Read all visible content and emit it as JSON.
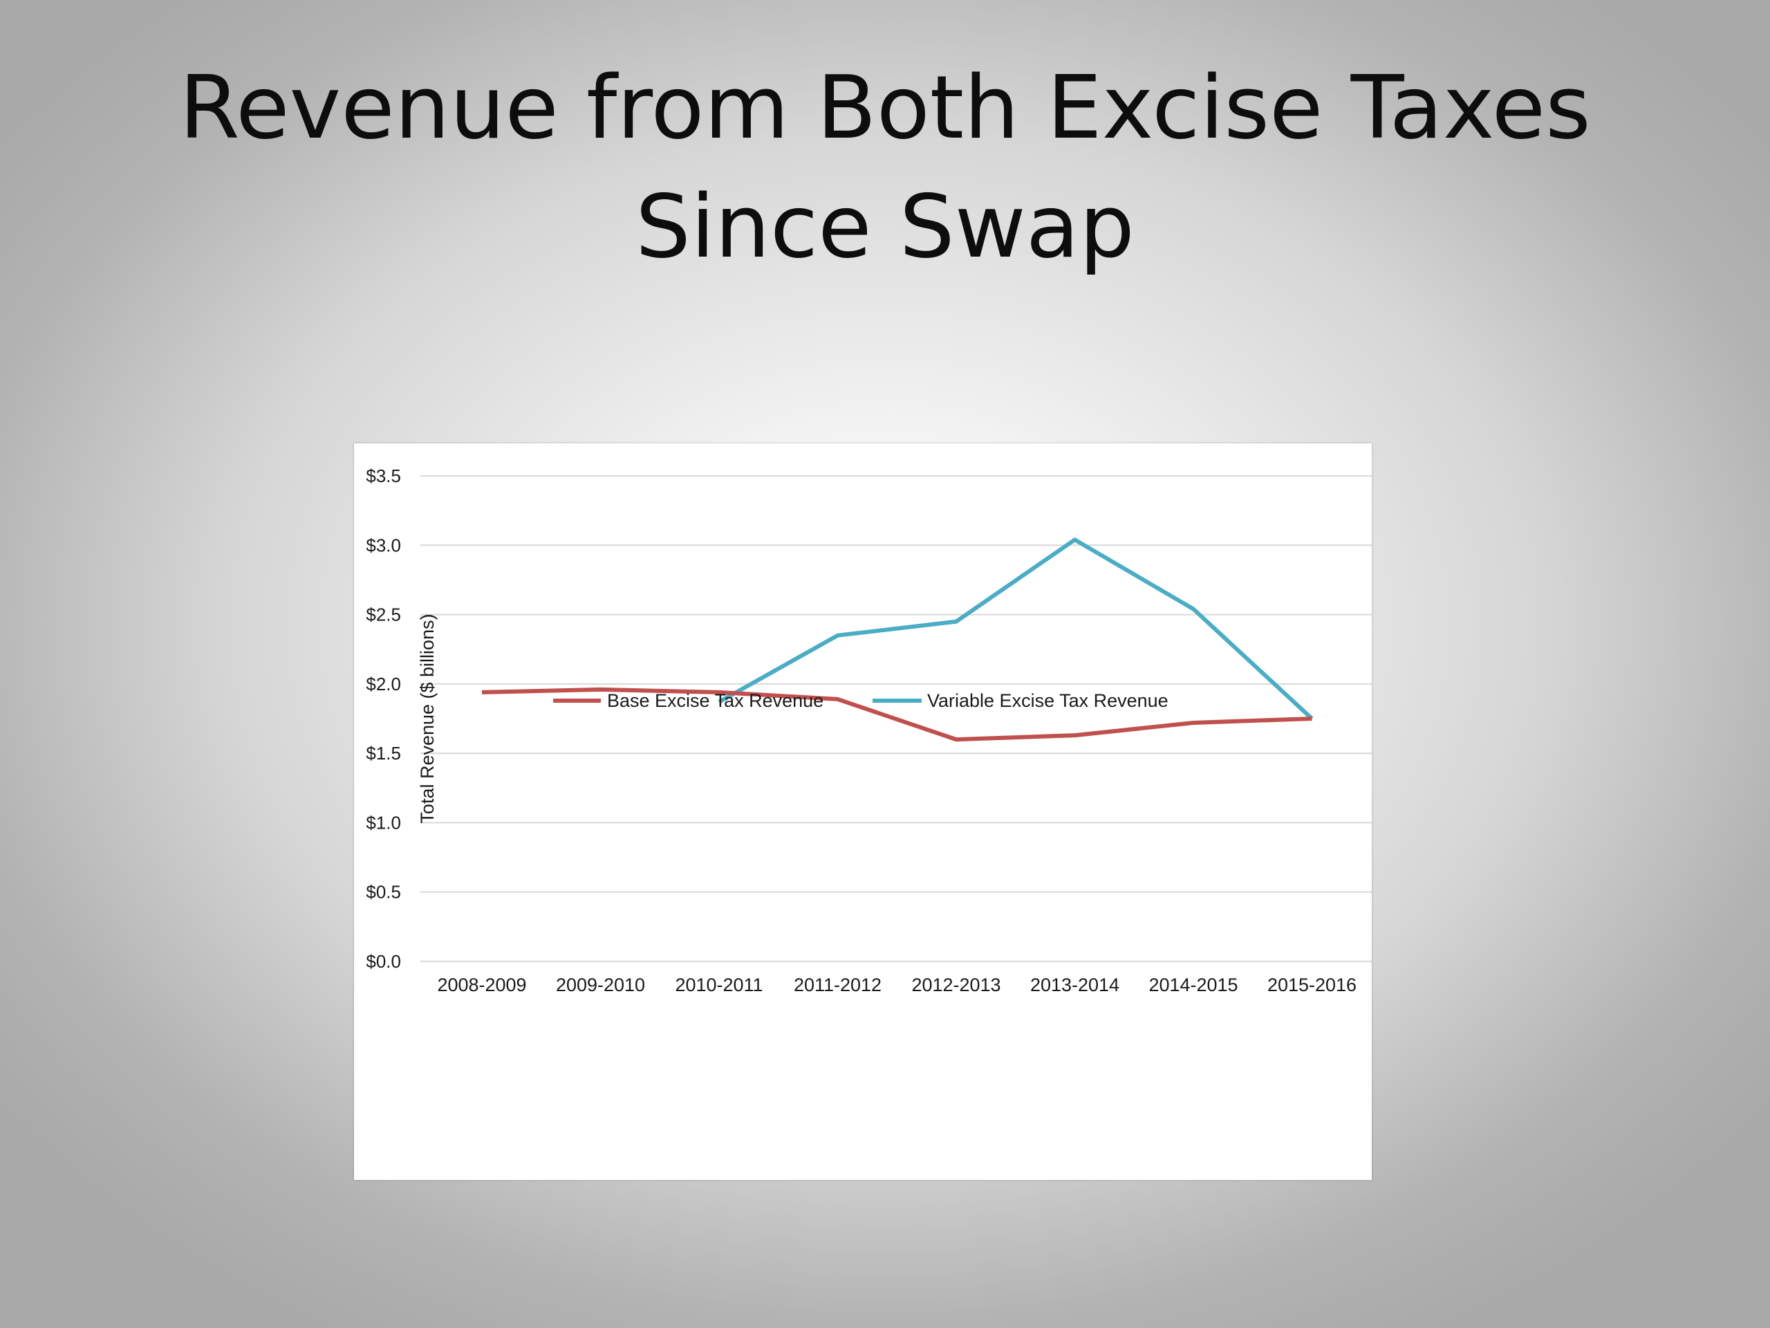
{
  "slide": {
    "title": "Revenue from Both Excise Taxes Since Swap"
  },
  "chart_data": {
    "type": "line",
    "title": "",
    "xlabel": "",
    "ylabel": "Total Revenue ($ billions)",
    "categories": [
      "2008-2009",
      "2009-2010",
      "2010-2011",
      "2011-2012",
      "2012-2013",
      "2013-2014",
      "2014-2015",
      "2015-2016"
    ],
    "series": [
      {
        "name": "Base Excise Tax Revenue",
        "color": "#c0504d",
        "values": [
          1.94,
          1.96,
          1.94,
          1.89,
          1.6,
          1.63,
          1.72,
          1.75
        ]
      },
      {
        "name": "Variable Excise Tax Revenue",
        "color": "#4bacc6",
        "values": [
          null,
          null,
          1.87,
          2.35,
          2.45,
          3.04,
          2.54,
          1.75
        ]
      }
    ],
    "ylim": [
      0,
      3.5
    ],
    "y_ticks": [
      "$0.0",
      "$0.5",
      "$1.0",
      "$1.5",
      "$2.0",
      "$2.5",
      "$3.0",
      "$3.5"
    ],
    "y_tick_values": [
      0,
      0.5,
      1.0,
      1.5,
      2.0,
      2.5,
      3.0,
      3.5
    ],
    "grid": true,
    "legend_position": "bottom",
    "grid_color": "#d9d9d9"
  }
}
